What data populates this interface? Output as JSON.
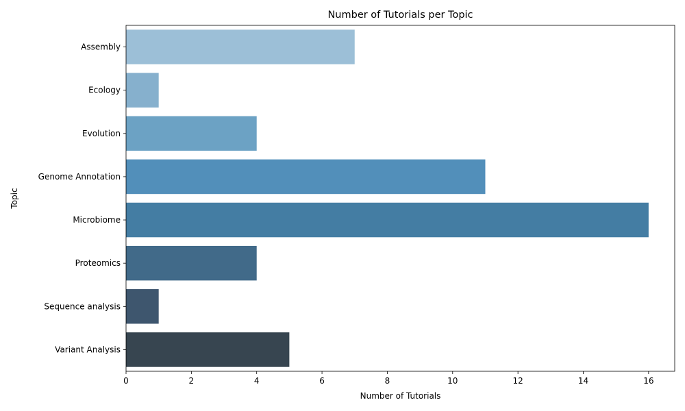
{
  "chart_data": {
    "type": "bar",
    "orientation": "horizontal",
    "title": "Number of Tutorials per Topic",
    "xlabel": "Number of Tutorials",
    "ylabel": "Topic",
    "categories": [
      "Assembly",
      "Ecology",
      "Evolution",
      "Genome Annotation",
      "Microbiome",
      "Proteomics",
      "Sequence analysis",
      "Variant Analysis"
    ],
    "values": [
      7,
      1,
      4,
      11,
      16,
      4,
      1,
      5
    ],
    "colors": [
      "#9cbfd7",
      "#86b0cd",
      "#6ca2c4",
      "#528fba",
      "#447da3",
      "#416a89",
      "#3e566e",
      "#374550"
    ],
    "xlim": [
      0,
      16.8
    ],
    "xticks": [
      0,
      2,
      4,
      6,
      8,
      10,
      12,
      14,
      16
    ],
    "grid": false,
    "legend": "none"
  }
}
